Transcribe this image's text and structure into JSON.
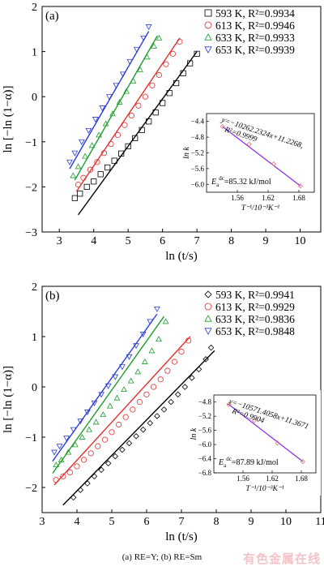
{
  "caption": "(a) RE=Y; (b) RE=Sm",
  "watermark": "有色金属在线",
  "chart_data": [
    {
      "panel_label": "(a)",
      "type": "scatter",
      "xlabel": "ln (t/s)",
      "ylabel": "ln [−ln (1−α)]",
      "xlim": [
        2.5,
        10.6
      ],
      "ylim": [
        -3,
        2
      ],
      "xticks": [
        3,
        4,
        5,
        6,
        7,
        8,
        9,
        10
      ],
      "yticks": [
        -3,
        -2,
        -1,
        0,
        1,
        2
      ],
      "legend": "top-right",
      "series": [
        {
          "name": "593 K, R²=0.9934",
          "marker": "square",
          "color": "#000000",
          "points": [
            [
              3.45,
              -2.25
            ],
            [
              3.6,
              -2.15
            ],
            [
              3.8,
              -2.0
            ],
            [
              4.0,
              -1.88
            ],
            [
              4.2,
              -1.72
            ],
            [
              4.4,
              -1.57
            ],
            [
              4.6,
              -1.42
            ],
            [
              4.8,
              -1.26
            ],
            [
              5.0,
              -1.1
            ],
            [
              5.2,
              -0.92
            ],
            [
              5.4,
              -0.74
            ],
            [
              5.6,
              -0.55
            ],
            [
              5.8,
              -0.35
            ],
            [
              6.0,
              -0.14
            ],
            [
              6.2,
              0.08
            ],
            [
              6.4,
              0.3
            ],
            [
              6.6,
              0.52
            ],
            [
              6.8,
              0.74
            ],
            [
              7.0,
              0.95
            ]
          ],
          "fit": [
            [
              3.55,
              -2.62
            ],
            [
              7.0,
              1.0
            ]
          ]
        },
        {
          "name": "613 K, R²=0.9946",
          "marker": "circle",
          "color": "#e0302f",
          "points": [
            [
              3.55,
              -1.95
            ],
            [
              3.7,
              -1.8
            ],
            [
              3.9,
              -1.62
            ],
            [
              4.1,
              -1.45
            ],
            [
              4.3,
              -1.25
            ],
            [
              4.5,
              -1.05
            ],
            [
              4.7,
              -0.85
            ],
            [
              4.9,
              -0.63
            ],
            [
              5.1,
              -0.42
            ],
            [
              5.3,
              -0.2
            ],
            [
              5.5,
              0.0
            ],
            [
              5.7,
              0.25
            ],
            [
              5.9,
              0.48
            ],
            [
              6.1,
              0.72
            ],
            [
              6.3,
              0.95
            ],
            [
              6.5,
              1.22
            ]
          ],
          "fit": [
            [
              3.5,
              -2.1
            ],
            [
              6.5,
              1.3
            ]
          ]
        },
        {
          "name": "633 K, R²=0.9933",
          "marker": "triangle-up",
          "color": "#1d9e2c",
          "points": [
            [
              3.4,
              -1.75
            ],
            [
              3.55,
              -1.55
            ],
            [
              3.75,
              -1.32
            ],
            [
              3.95,
              -1.08
            ],
            [
              4.15,
              -0.85
            ],
            [
              4.35,
              -0.6
            ],
            [
              4.55,
              -0.38
            ],
            [
              4.75,
              -0.12
            ],
            [
              4.95,
              0.12
            ],
            [
              5.15,
              0.35
            ],
            [
              5.35,
              0.6
            ],
            [
              5.55,
              0.88
            ],
            [
              5.75,
              1.12
            ],
            [
              5.9,
              1.3
            ]
          ],
          "fit": [
            [
              3.45,
              -1.85
            ],
            [
              5.85,
              1.35
            ]
          ]
        },
        {
          "name": "653 K, R²=0.9939",
          "marker": "triangle-down",
          "color": "#2b3bd0",
          "points": [
            [
              3.3,
              -1.45
            ],
            [
              3.45,
              -1.25
            ],
            [
              3.65,
              -1.0
            ],
            [
              3.85,
              -0.75
            ],
            [
              4.05,
              -0.5
            ],
            [
              4.25,
              -0.25
            ],
            [
              4.45,
              0.0
            ],
            [
              4.65,
              0.25
            ],
            [
              4.85,
              0.5
            ],
            [
              5.05,
              0.78
            ],
            [
              5.25,
              1.05
            ],
            [
              5.45,
              1.3
            ],
            [
              5.6,
              1.55
            ]
          ],
          "fit": [
            [
              3.3,
              -1.6
            ],
            [
              5.6,
              1.45
            ]
          ]
        }
      ],
      "inset": {
        "xlabel": "T⁻¹/10⁻³K⁻¹",
        "ylabel": "ln k",
        "xlim": [
          1.5,
          1.71
        ],
        "ylim": [
          -6.2,
          -4.2
        ],
        "xticks": [
          1.56,
          1.62,
          1.68
        ],
        "yticks": [
          -6.0,
          -5.6,
          -5.2,
          -4.8,
          -4.4
        ],
        "points": [
          [
            1.531,
            -4.53
          ],
          [
            1.583,
            -4.98
          ],
          [
            1.631,
            -5.48
          ],
          [
            1.683,
            -6.04
          ]
        ],
        "equation": "y=−10262.2324x+11.2268,",
        "r2": "R²=0.9999",
        "energy": "Ea^dc=85.32 kJ/mol",
        "energy_base": "E",
        "energy_sub": "a",
        "energy_sup": "dc",
        "energy_value": "=85.32 kJ/mol"
      }
    },
    {
      "panel_label": "(b)",
      "type": "scatter",
      "xlabel": "ln (t/s)",
      "ylabel": "ln [−ln (1−α)]",
      "xlim": [
        3,
        11
      ],
      "ylim": [
        -2.5,
        2
      ],
      "xticks": [
        3,
        4,
        5,
        6,
        7,
        8,
        9,
        10,
        11
      ],
      "yticks": [
        -2,
        -1,
        0,
        1,
        2
      ],
      "legend": "top-right",
      "series": [
        {
          "name": "593 K, R²=0.9941",
          "marker": "diamond",
          "color": "#000000",
          "points": [
            [
              3.9,
              -2.2
            ],
            [
              4.1,
              -2.05
            ],
            [
              4.3,
              -1.92
            ],
            [
              4.5,
              -1.78
            ],
            [
              4.7,
              -1.65
            ],
            [
              4.9,
              -1.52
            ],
            [
              5.1,
              -1.38
            ],
            [
              5.3,
              -1.25
            ],
            [
              5.5,
              -1.12
            ],
            [
              5.7,
              -0.98
            ],
            [
              5.9,
              -0.85
            ],
            [
              6.1,
              -0.72
            ],
            [
              6.3,
              -0.58
            ],
            [
              6.5,
              -0.45
            ],
            [
              6.7,
              -0.3
            ],
            [
              6.9,
              -0.15
            ],
            [
              7.1,
              0.0
            ],
            [
              7.3,
              0.18
            ],
            [
              7.5,
              0.35
            ],
            [
              7.7,
              0.55
            ],
            [
              7.85,
              0.78
            ]
          ],
          "fit": [
            [
              3.6,
              -2.35
            ],
            [
              7.95,
              0.72
            ]
          ]
        },
        {
          "name": "613 K, R²=0.9929",
          "marker": "circle",
          "color": "#e0302f",
          "points": [
            [
              3.4,
              -1.85
            ],
            [
              3.6,
              -1.78
            ],
            [
              3.8,
              -1.7
            ],
            [
              4.0,
              -1.58
            ],
            [
              4.2,
              -1.45
            ],
            [
              4.4,
              -1.32
            ],
            [
              4.6,
              -1.18
            ],
            [
              4.8,
              -1.05
            ],
            [
              5.0,
              -0.9
            ],
            [
              5.2,
              -0.75
            ],
            [
              5.4,
              -0.6
            ],
            [
              5.6,
              -0.45
            ],
            [
              5.8,
              -0.3
            ],
            [
              6.0,
              -0.15
            ],
            [
              6.2,
              0.0
            ],
            [
              6.4,
              0.15
            ],
            [
              6.6,
              0.32
            ],
            [
              6.8,
              0.5
            ],
            [
              7.0,
              0.7
            ],
            [
              7.2,
              0.92
            ]
          ],
          "fit": [
            [
              3.35,
              -1.95
            ],
            [
              7.25,
              1.0
            ]
          ]
        },
        {
          "name": "633 K, R²=0.9836",
          "marker": "triangle-up",
          "color": "#1d9e2c",
          "points": [
            [
              3.4,
              -1.55
            ],
            [
              3.55,
              -1.45
            ],
            [
              3.75,
              -1.3
            ],
            [
              3.95,
              -1.15
            ],
            [
              4.15,
              -1.0
            ],
            [
              4.35,
              -0.85
            ],
            [
              4.55,
              -0.7
            ],
            [
              4.75,
              -0.55
            ],
            [
              4.95,
              -0.38
            ],
            [
              5.15,
              -0.22
            ],
            [
              5.35,
              -0.05
            ],
            [
              5.55,
              0.12
            ],
            [
              5.75,
              0.3
            ],
            [
              5.95,
              0.5
            ],
            [
              6.15,
              0.72
            ],
            [
              6.35,
              0.95
            ],
            [
              6.55,
              1.3
            ]
          ],
          "fit": [
            [
              3.3,
              -1.72
            ],
            [
              6.5,
              1.4
            ]
          ]
        },
        {
          "name": "653 K, R²=0.9848",
          "marker": "triangle-down",
          "color": "#2b3bd0",
          "points": [
            [
              3.35,
              -1.3
            ],
            [
              3.5,
              -1.18
            ],
            [
              3.7,
              -1.02
            ],
            [
              3.9,
              -0.85
            ],
            [
              4.1,
              -0.68
            ],
            [
              4.3,
              -0.5
            ],
            [
              4.5,
              -0.32
            ],
            [
              4.7,
              -0.15
            ],
            [
              4.9,
              0.02
            ],
            [
              5.1,
              0.2
            ],
            [
              5.3,
              0.4
            ],
            [
              5.5,
              0.6
            ],
            [
              5.7,
              0.82
            ],
            [
              5.9,
              1.05
            ],
            [
              6.1,
              1.3
            ],
            [
              6.3,
              1.55
            ]
          ],
          "fit": [
            [
              3.3,
              -1.48
            ],
            [
              6.3,
              1.45
            ]
          ]
        }
      ],
      "inset": {
        "xlabel": "T⁻¹/10⁻³K⁻¹",
        "ylabel": "ln k",
        "xlim": [
          1.5,
          1.71
        ],
        "ylim": [
          -6.8,
          -4.6
        ],
        "xticks": [
          1.56,
          1.62,
          1.68
        ],
        "yticks": [
          -6.8,
          -6.4,
          -6.0,
          -5.6,
          -5.2,
          -4.8
        ],
        "points": [
          [
            1.531,
            -4.87
          ],
          [
            1.583,
            -5.32
          ],
          [
            1.631,
            -5.96
          ],
          [
            1.683,
            -6.48
          ]
        ],
        "equation": "y=−10571.4058x+11.3671",
        "r2": "R²=0.9904",
        "energy": "Ea^dc=87.89 kJ/mol",
        "energy_base": "E",
        "energy_sub": "a",
        "energy_sup": "dc",
        "energy_value": "=87.89 kJ/mol"
      }
    }
  ]
}
